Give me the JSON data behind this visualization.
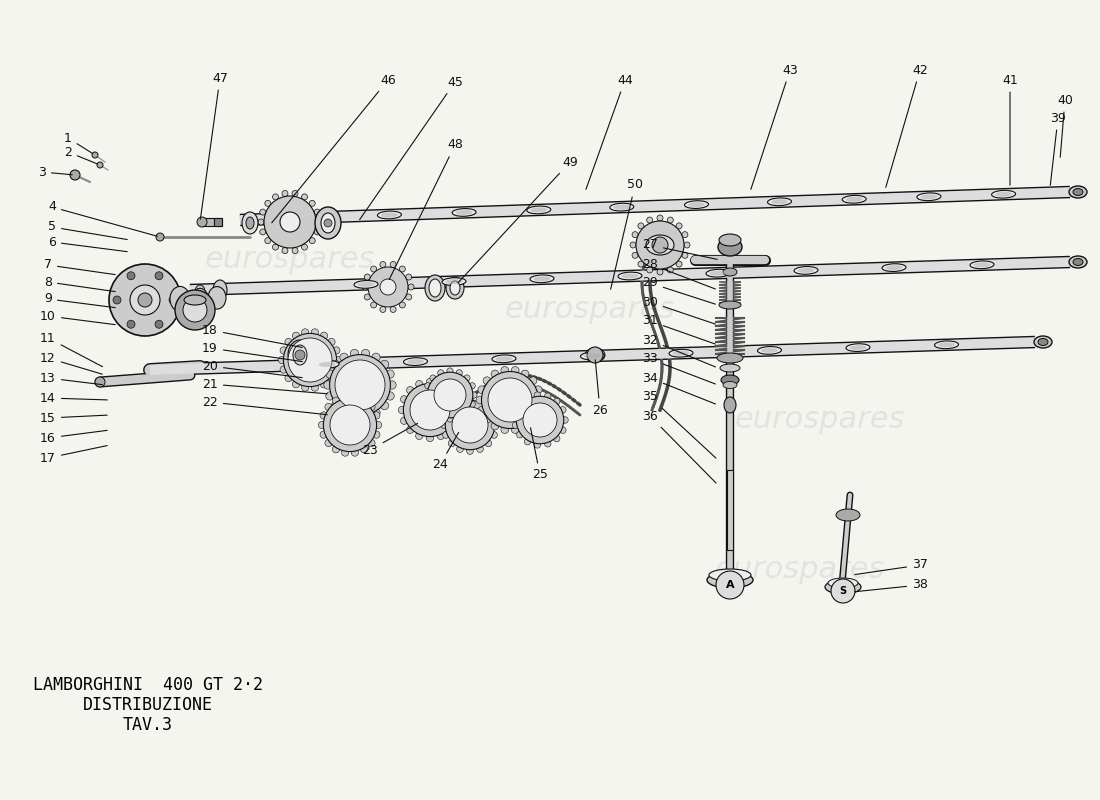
{
  "title_line1": "LAMBORGHINI  400 GT 2·2",
  "title_line2": "DISTRIBUZIONE",
  "title_line3": "TAV.3",
  "background_color": "#f5f5f0",
  "watermark_color": "#cccccc",
  "line_color": "#111111",
  "label_fontsize": 9,
  "shaft_color": "#dddddd",
  "shaft_edge": "#111111",
  "gear_color": "#cccccc",
  "gear_edge": "#111111",
  "spring_color": "#555555",
  "valve_color": "#bbbbbb",
  "label_color": "#111111"
}
